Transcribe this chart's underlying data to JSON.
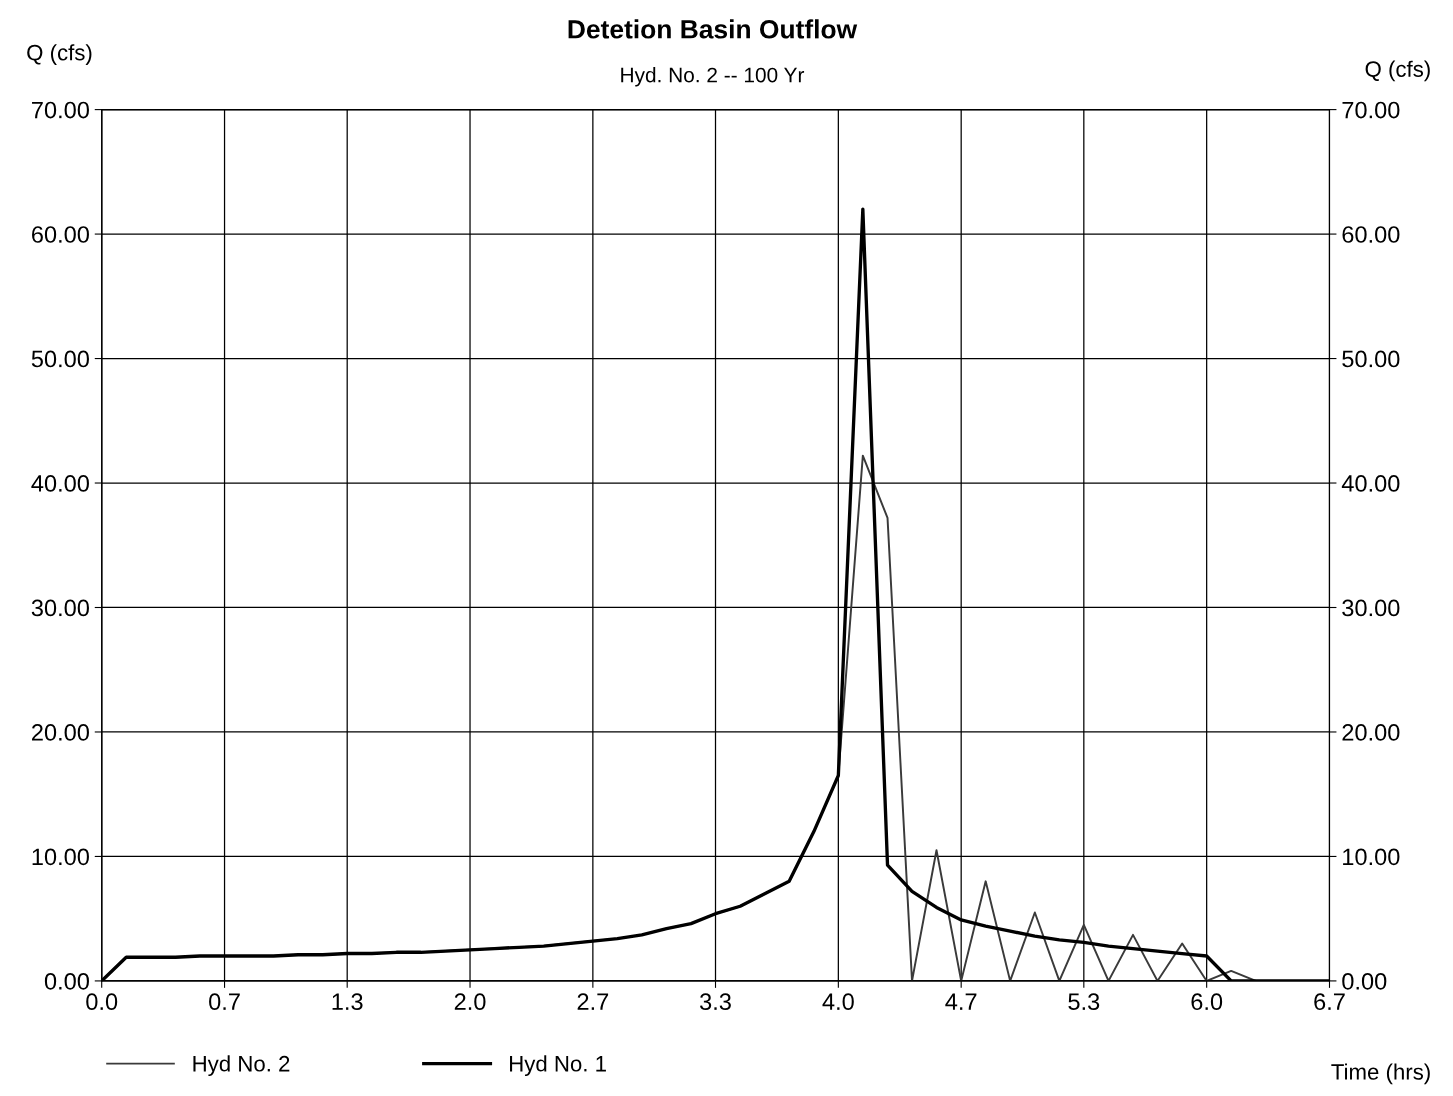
{
  "chart_data": {
    "type": "line",
    "title": "Detetion Basin Outflow",
    "subtitle": "Hyd. No. 2 -- 100 Yr",
    "xlabel": "Time (hrs)",
    "ylabel": "Q (cfs)",
    "y2label": "Q (cfs)",
    "x": [
      0,
      0.133,
      0.267,
      0.4,
      0.533,
      0.667,
      0.8,
      0.933,
      1.067,
      1.2,
      1.333,
      1.467,
      1.6,
      1.733,
      1.867,
      2.0,
      2.133,
      2.267,
      2.4,
      2.533,
      2.667,
      2.8,
      2.933,
      3.067,
      3.2,
      3.333,
      3.467,
      3.6,
      3.733,
      3.867,
      4.0,
      4.133,
      4.267,
      4.4,
      4.533,
      4.667,
      4.8,
      4.933,
      5.067,
      5.2,
      5.333,
      5.467,
      5.6,
      5.733,
      5.867,
      6.0,
      6.133,
      6.267,
      6.4,
      6.533,
      6.667
    ],
    "series": [
      {
        "name": "Hyd No. 2",
        "color": "#3a3a3a",
        "values": [
          0,
          1.9,
          1.9,
          1.9,
          2.0,
          2.0,
          2.0,
          2.0,
          2.1,
          2.1,
          2.2,
          2.2,
          2.3,
          2.3,
          2.4,
          2.5,
          2.6,
          2.7,
          2.8,
          3.0,
          3.2,
          3.4,
          3.7,
          4.2,
          4.6,
          5.4,
          6.0,
          7.0,
          8.0,
          12.0,
          16.5,
          42.2,
          37.2,
          0,
          10.5,
          0,
          8.0,
          0,
          5.5,
          0,
          4.5,
          0,
          3.7,
          0,
          3.0,
          0,
          0.8,
          0,
          0,
          0,
          0
        ]
      },
      {
        "name": "Hyd No. 1",
        "color": "#000000",
        "values": [
          0,
          1.9,
          1.9,
          1.9,
          2.0,
          2.0,
          2.0,
          2.0,
          2.1,
          2.1,
          2.2,
          2.2,
          2.3,
          2.3,
          2.4,
          2.5,
          2.6,
          2.7,
          2.8,
          3.0,
          3.2,
          3.4,
          3.7,
          4.2,
          4.6,
          5.4,
          6.0,
          7.0,
          8.0,
          12.0,
          16.5,
          62.0,
          9.3,
          7.2,
          5.9,
          4.9,
          4.4,
          4.0,
          3.6,
          3.3,
          3.1,
          2.8,
          2.6,
          2.4,
          2.2,
          2.0,
          0,
          0,
          0,
          0,
          0
        ]
      }
    ],
    "xlim": [
      0,
      6.667
    ],
    "xticks": [
      {
        "value": 0,
        "label": "0.0"
      },
      {
        "value": 0.667,
        "label": "0.7"
      },
      {
        "value": 1.333,
        "label": "1.3"
      },
      {
        "value": 2.0,
        "label": "2.0"
      },
      {
        "value": 2.667,
        "label": "2.7"
      },
      {
        "value": 3.333,
        "label": "3.3"
      },
      {
        "value": 4.0,
        "label": "4.0"
      },
      {
        "value": 4.667,
        "label": "4.7"
      },
      {
        "value": 5.333,
        "label": "5.3"
      },
      {
        "value": 6.0,
        "label": "6.0"
      },
      {
        "value": 6.667,
        "label": "6.7"
      }
    ],
    "ylim": [
      0,
      70
    ],
    "yticks": [
      {
        "value": 0,
        "label": "0.00"
      },
      {
        "value": 10,
        "label": "10.00"
      },
      {
        "value": 20,
        "label": "20.00"
      },
      {
        "value": 30,
        "label": "30.00"
      },
      {
        "value": 40,
        "label": "40.00"
      },
      {
        "value": 50,
        "label": "50.00"
      },
      {
        "value": 60,
        "label": "60.00"
      },
      {
        "value": 70,
        "label": "70.00"
      }
    ],
    "y2lim": [
      0,
      70
    ],
    "y2ticks": [
      {
        "value": 0,
        "label": "0.00"
      },
      {
        "value": 10,
        "label": "10.00"
      },
      {
        "value": 20,
        "label": "20.00"
      },
      {
        "value": 30,
        "label": "30.00"
      },
      {
        "value": 40,
        "label": "40.00"
      },
      {
        "value": 50,
        "label": "50.00"
      },
      {
        "value": 60,
        "label": "60.00"
      },
      {
        "value": 70,
        "label": "70.00"
      }
    ],
    "grid": true,
    "legend": "bottom left",
    "marker": "none",
    "line_style": "solid"
  }
}
